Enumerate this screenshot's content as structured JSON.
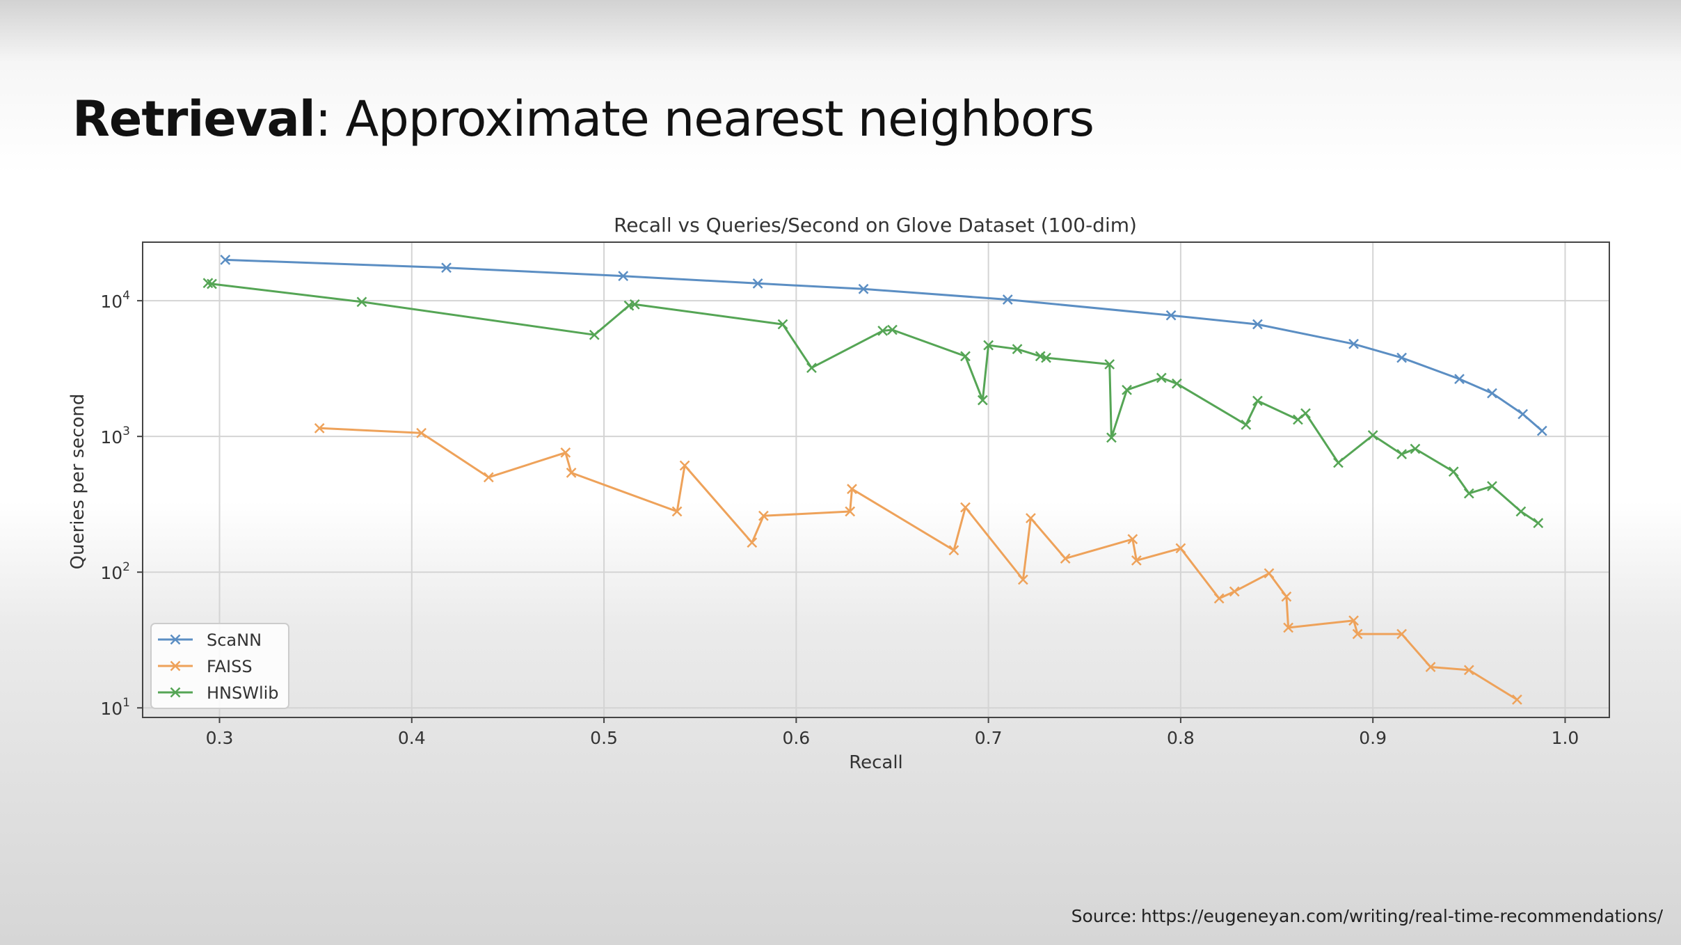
{
  "slide": {
    "title_bold": "Retrieval",
    "title_rest": ": Approximate nearest neighbors",
    "source_label": "Source:",
    "source_url": "https://eugeneyan.com/writing/real-time-recommendations/"
  },
  "chart_data": {
    "type": "line",
    "title": "Recall vs Queries/Second on Glove Dataset (100-dim)",
    "xlabel": "Recall",
    "ylabel": "Queries per second",
    "xlim": [
      0.26,
      1.023
    ],
    "ylim": [
      8.5,
      27000
    ],
    "yscale": "log",
    "grid": true,
    "legend_position": "lower-left",
    "x_ticks": [
      0.3,
      0.4,
      0.5,
      0.6,
      0.7,
      0.8,
      0.9,
      1.0
    ],
    "x_tick_labels": [
      "0.3",
      "0.4",
      "0.5",
      "0.6",
      "0.7",
      "0.8",
      "0.9",
      "1.0"
    ],
    "y_ticks": [
      10,
      100,
      1000,
      10000
    ],
    "y_tick_bases": [
      "10",
      "10",
      "10",
      "10"
    ],
    "y_tick_exponents": [
      "1",
      "2",
      "3",
      "4"
    ],
    "series": [
      {
        "name": "ScaNN",
        "color": "#5b8ec3",
        "marker": "x",
        "x": [
          0.303,
          0.418,
          0.51,
          0.58,
          0.635,
          0.71,
          0.795,
          0.84,
          0.89,
          0.915,
          0.945,
          0.962,
          0.978,
          0.988
        ],
        "y": [
          20000,
          17500,
          15200,
          13400,
          12200,
          10200,
          7800,
          6700,
          4800,
          3800,
          2650,
          2080,
          1460,
          1100
        ]
      },
      {
        "name": "FAISS",
        "color": "#eea25a",
        "marker": "x",
        "x": [
          0.352,
          0.405,
          0.44,
          0.48,
          0.483,
          0.538,
          0.542,
          0.577,
          0.583,
          0.628,
          0.629,
          0.682,
          0.688,
          0.718,
          0.722,
          0.74,
          0.775,
          0.777,
          0.8,
          0.82,
          0.828,
          0.846,
          0.855,
          0.856,
          0.89,
          0.892,
          0.915,
          0.93,
          0.95,
          0.975
        ],
        "y": [
          1150,
          1060,
          500,
          760,
          540,
          280,
          610,
          165,
          260,
          280,
          410,
          145,
          300,
          88,
          250,
          126,
          175,
          122,
          150,
          64,
          72,
          98,
          66,
          39,
          44,
          35,
          35,
          20,
          19,
          11.5
        ]
      },
      {
        "name": "HNSWlib",
        "color": "#55a555",
        "marker": "x",
        "x": [
          0.294,
          0.296,
          0.374,
          0.495,
          0.513,
          0.516,
          0.593,
          0.608,
          0.645,
          0.65,
          0.688,
          0.697,
          0.7,
          0.715,
          0.727,
          0.73,
          0.763,
          0.764,
          0.772,
          0.79,
          0.798,
          0.834,
          0.84,
          0.861,
          0.865,
          0.882,
          0.9,
          0.915,
          0.922,
          0.942,
          0.95,
          0.962,
          0.977,
          0.986
        ],
        "y": [
          13500,
          13300,
          9800,
          5600,
          9200,
          9400,
          6700,
          3200,
          6000,
          6100,
          3900,
          1850,
          4700,
          4400,
          3900,
          3800,
          3400,
          980,
          2200,
          2700,
          2450,
          1220,
          1830,
          1330,
          1480,
          640,
          1020,
          740,
          810,
          550,
          380,
          430,
          280,
          230
        ]
      }
    ]
  }
}
